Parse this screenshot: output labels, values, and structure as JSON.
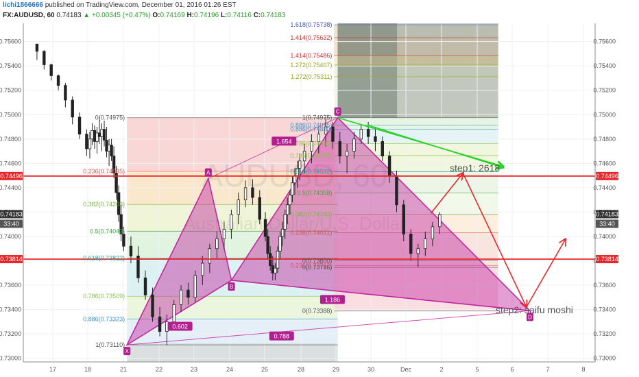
{
  "header": {
    "user": "lichi1866666",
    "published": "published on TradingView.com, December 01, 2016 01:26 EST",
    "symbol": "FX:AUDUSD, 60",
    "last": "0.74183",
    "change_arrow": "▲",
    "change": "+0.00345 (+0.47%)",
    "o_label": "O:",
    "o": "0.74169",
    "h_label": "H:",
    "h": "0.74196",
    "l_label": "L:",
    "l": "0.74116",
    "c_label": "C:",
    "c": "0.74183"
  },
  "watermark": {
    "ticker": "AUDUSD, 60",
    "name": "Australian Dollar/U.S. Dollar"
  },
  "notes": {
    "step1": "step1: 2618",
    "step2": "step2: saifu moshi"
  },
  "colors": {
    "red_line": "#e8272a",
    "up": "#29a329",
    "pattern": "#c2279f",
    "candle": "#222222"
  },
  "chart_data": {
    "type": "candlestick",
    "symbol": "FX:AUDUSD",
    "interval": "60",
    "ylim": [
      0.7297,
      0.7575
    ],
    "y_ticks": [
      "0.75600",
      "0.75400",
      "0.75200",
      "0.75000",
      "0.74800",
      "0.74600",
      "0.74400",
      "0.74200",
      "0.74000",
      "0.73800",
      "0.73600",
      "0.73400",
      "0.73200",
      "0.73000"
    ],
    "x_ticks": [
      "17",
      "18",
      "21",
      "22",
      "23",
      "24",
      "25",
      "28",
      "29",
      "30",
      "Dec",
      "2",
      "5",
      "6",
      "7",
      "8"
    ],
    "price_tags": [
      {
        "label": "0.74496",
        "value": 0.74496,
        "color": "#e8272a"
      },
      {
        "label": "0.74183",
        "value": 0.74183,
        "color": "#333333"
      },
      {
        "label": "33:40",
        "value": 0.74,
        "color": "#555555",
        "below": true
      },
      {
        "label": "0.73814",
        "value": 0.73814,
        "color": "#e8272a"
      }
    ],
    "horizontal_lines": [
      {
        "value": 0.74496,
        "color": "#e8272a"
      },
      {
        "value": 0.73814,
        "color": "#e8272a"
      }
    ],
    "harmonic_pattern": {
      "points": [
        {
          "name": "X",
          "t": 21.1,
          "price": 0.7311
        },
        {
          "name": "A",
          "t": 23.4,
          "price": 0.74475
        },
        {
          "name": "B",
          "t": 24.05,
          "price": 0.7364
        },
        {
          "name": "C",
          "t": 29.05,
          "price": 0.74975
        },
        {
          "name": "D",
          "t": 34.5,
          "price": 0.7339
        }
      ],
      "ratios": [
        {
          "label": "0.602",
          "t": 22.6,
          "price": 0.7326
        },
        {
          "label": "1.654",
          "t": 26.6,
          "price": 0.7478
        },
        {
          "label": "1.186",
          "t": 28.9,
          "price": 0.7348
        },
        {
          "label": "0.788",
          "t": 26.4,
          "price": 0.7318
        }
      ]
    },
    "fib_retracements": [
      {
        "text": "0(0.74975)",
        "value": 0.74975,
        "color": "#555555",
        "t": 21.1
      },
      {
        "text": "0.236(0.74535)",
        "value": 0.74535,
        "color": "#d9534f",
        "t": 21.1
      },
      {
        "text": "0.382(0.74263)",
        "value": 0.74263,
        "color": "#7cb342",
        "t": 21.1
      },
      {
        "text": "0.5(0.74043)",
        "value": 0.74043,
        "color": "#43a047",
        "t": 21.1
      },
      {
        "text": "0.618(0.73822)",
        "value": 0.73822,
        "color": "#26a69a",
        "t": 21.1
      },
      {
        "text": "0.786(0.73509)",
        "value": 0.73509,
        "color": "#8bc34a",
        "t": 21.1
      },
      {
        "text": "0.886(0.73323)",
        "value": 0.73323,
        "color": "#3f8fc6",
        "t": 21.1
      },
      {
        "text": "1(0.73110)",
        "value": 0.7311,
        "color": "#555555",
        "t": 21.1
      },
      {
        "text": "1.618(0.75738)",
        "value": 0.75738,
        "color": "#3f51b5",
        "t": 28.95
      },
      {
        "text": "1.414(0.75632)",
        "value": 0.75632,
        "color": "#d32f2f",
        "t": 28.95
      },
      {
        "text": "1.414(0.75486)",
        "value": 0.75486,
        "color": "#d32f2f",
        "t": 28.95
      },
      {
        "text": "1.272(0.75407)",
        "value": 0.75407,
        "color": "#9aa61c",
        "t": 28.95
      },
      {
        "text": "1.272(0.75311)",
        "value": 0.75311,
        "color": "#9aa61c",
        "t": 28.95
      },
      {
        "text": "1(0.74975)",
        "value": 0.74975,
        "color": "#555555",
        "t": 28.95
      },
      {
        "text": "0.886(0.74915)",
        "value": 0.74915,
        "color": "#3f8fc6",
        "t": 28.95
      },
      {
        "text": "0.886(0.74880)",
        "value": 0.7488,
        "color": "#3f8fc6",
        "t": 28.95
      },
      {
        "text": "0.786(0.74763)",
        "value": 0.74763,
        "color": "#8bc34a",
        "t": 28.95
      },
      {
        "text": "0.786(0.74665)",
        "value": 0.74665,
        "color": "#8bc34a",
        "t": 28.95
      },
      {
        "text": "0.618(0.74532)",
        "value": 0.74532,
        "color": "#26a69a",
        "t": 28.95
      },
      {
        "text": "0.5(0.74358)",
        "value": 0.74358,
        "color": "#43a047",
        "t": 28.95
      },
      {
        "text": "0.382(0.74183)",
        "value": 0.74183,
        "color": "#7cb342",
        "t": 28.95
      },
      {
        "text": "0.236(0.74031)",
        "value": 0.74031,
        "color": "#d9534f",
        "t": 28.95
      },
      {
        "text": "0(0.73800)",
        "value": 0.738,
        "color": "#555555",
        "t": 28.95
      },
      {
        "text": "0.236(0.73762)",
        "value": 0.73762,
        "color": "#d9534f",
        "t": 28.95
      },
      {
        "text": "0(0.73746)",
        "value": 0.73746,
        "color": "#555555",
        "t": 28.95
      },
      {
        "text": "0(0.73388)",
        "value": 0.73388,
        "color": "#555555",
        "t": 28.95
      }
    ],
    "trend_arrows": [
      {
        "t1": 29.05,
        "p1": 0.74975,
        "t2": 33.75,
        "p2": 0.74575,
        "color": "#27d227"
      },
      {
        "t1": 29.9,
        "p1": 0.74915,
        "t2": 33.75,
        "p2": 0.74565,
        "color": "#27d227"
      },
      {
        "t1": 31.7,
        "p1": 0.7419,
        "t2": 32.6,
        "p2": 0.7452,
        "color": "#e8272a"
      },
      {
        "t1": 32.6,
        "p1": 0.7452,
        "t2": 34.4,
        "p2": 0.7342,
        "color": "#e8272a"
      },
      {
        "t1": 34.4,
        "p1": 0.7342,
        "t2": 35.5,
        "p2": 0.7398,
        "color": "#e8272a"
      }
    ],
    "candles_approx": [
      [
        0.7558,
        0.7556,
        0.7545,
        0.7552
      ],
      [
        0.7552,
        0.7553,
        0.7537,
        0.7541
      ],
      [
        0.7541,
        0.7542,
        0.7528,
        0.7532
      ],
      [
        0.7532,
        0.7533,
        0.752,
        0.7524
      ],
      [
        0.7524,
        0.7526,
        0.7506,
        0.7512
      ],
      [
        0.7512,
        0.7515,
        0.7492,
        0.7498
      ],
      [
        0.7498,
        0.7502,
        0.748,
        0.7484
      ],
      [
        0.7484,
        0.7488,
        0.7466,
        0.7472
      ],
      [
        0.7472,
        0.7486,
        0.7464,
        0.748
      ],
      [
        0.748,
        0.7493,
        0.7475,
        0.7487
      ],
      [
        0.7487,
        0.7491,
        0.7472,
        0.7478
      ],
      [
        0.7478,
        0.749,
        0.7468,
        0.7485
      ],
      [
        0.7485,
        0.7498,
        0.7476,
        0.7482
      ],
      [
        0.7482,
        0.7493,
        0.747,
        0.7488
      ],
      [
        0.7488,
        0.7495,
        0.7474,
        0.7479
      ],
      [
        0.7479,
        0.749,
        0.7465,
        0.747
      ],
      [
        0.747,
        0.748,
        0.7458,
        0.7475
      ],
      [
        0.7475,
        0.748,
        0.7462,
        0.7466
      ],
      [
        0.7466,
        0.7474,
        0.7448,
        0.7452
      ],
      [
        0.7452,
        0.7458,
        0.743,
        0.7436
      ],
      [
        0.7436,
        0.7442,
        0.7412,
        0.7418
      ],
      [
        0.7418,
        0.7426,
        0.7396,
        0.7402
      ],
      [
        0.7402,
        0.7408,
        0.7388,
        0.7392
      ],
      [
        0.7392,
        0.74,
        0.7378,
        0.7384
      ],
      [
        0.7384,
        0.7392,
        0.7362,
        0.7366
      ],
      [
        0.7366,
        0.7372,
        0.7348,
        0.7352
      ],
      [
        0.7352,
        0.7358,
        0.733,
        0.7334
      ],
      [
        0.7334,
        0.7342,
        0.7318,
        0.7322
      ],
      [
        0.7322,
        0.7336,
        0.7311,
        0.733
      ],
      [
        0.733,
        0.7348,
        0.7324,
        0.7344
      ],
      [
        0.7344,
        0.736,
        0.7338,
        0.7356
      ],
      [
        0.7356,
        0.7362,
        0.7344,
        0.735
      ],
      [
        0.735,
        0.7372,
        0.7346,
        0.7368
      ],
      [
        0.7368,
        0.7384,
        0.736,
        0.7378
      ],
      [
        0.7378,
        0.7394,
        0.737,
        0.739
      ],
      [
        0.739,
        0.7404,
        0.7382,
        0.7398
      ],
      [
        0.7398,
        0.7412,
        0.739,
        0.7406
      ],
      [
        0.7406,
        0.7422,
        0.7398,
        0.7418
      ],
      [
        0.7418,
        0.7436,
        0.741,
        0.743
      ],
      [
        0.743,
        0.7446,
        0.7424,
        0.744
      ],
      [
        0.744,
        0.7447,
        0.7426,
        0.7432
      ],
      [
        0.7432,
        0.7438,
        0.741,
        0.7414
      ],
      [
        0.7414,
        0.742,
        0.7396,
        0.74
      ],
      [
        0.74,
        0.7406,
        0.7382,
        0.7386
      ],
      [
        0.7386,
        0.7392,
        0.7372,
        0.7376
      ],
      [
        0.7376,
        0.7384,
        0.7364,
        0.737
      ],
      [
        0.737,
        0.7378,
        0.7364,
        0.7374
      ],
      [
        0.7374,
        0.7392,
        0.737,
        0.7388
      ],
      [
        0.7388,
        0.7404,
        0.7382,
        0.74
      ],
      [
        0.74,
        0.7412,
        0.7392,
        0.7406
      ],
      [
        0.7406,
        0.7422,
        0.7398,
        0.7418
      ],
      [
        0.7418,
        0.7432,
        0.741,
        0.7426
      ],
      [
        0.7426,
        0.7438,
        0.7418,
        0.7434
      ],
      [
        0.7434,
        0.745,
        0.7428,
        0.7444
      ],
      [
        0.7444,
        0.7456,
        0.7434,
        0.745
      ],
      [
        0.745,
        0.7462,
        0.744,
        0.7456
      ],
      [
        0.7456,
        0.7468,
        0.7446,
        0.7462
      ],
      [
        0.7462,
        0.7476,
        0.7452,
        0.747
      ],
      [
        0.747,
        0.7484,
        0.746,
        0.7478
      ],
      [
        0.7478,
        0.749,
        0.7468,
        0.7484
      ],
      [
        0.7484,
        0.7497,
        0.7474,
        0.749
      ],
      [
        0.749,
        0.7494,
        0.7472,
        0.7478
      ],
      [
        0.7478,
        0.7486,
        0.746,
        0.7466
      ],
      [
        0.7466,
        0.7476,
        0.7452,
        0.747
      ],
      [
        0.747,
        0.7486,
        0.7464,
        0.748
      ],
      [
        0.748,
        0.7492,
        0.7476,
        0.7488
      ],
      [
        0.7488,
        0.7494,
        0.7476,
        0.7482
      ],
      [
        0.7482,
        0.749,
        0.747,
        0.7478
      ],
      [
        0.7478,
        0.7482,
        0.7462,
        0.7466
      ],
      [
        0.7466,
        0.747,
        0.7444,
        0.745
      ],
      [
        0.745,
        0.7454,
        0.742,
        0.7426
      ],
      [
        0.7426,
        0.743,
        0.7396,
        0.7402
      ],
      [
        0.7402,
        0.7406,
        0.738,
        0.7386
      ],
      [
        0.7386,
        0.7394,
        0.7375,
        0.739
      ],
      [
        0.739,
        0.7404,
        0.7384,
        0.7398
      ],
      [
        0.7398,
        0.7412,
        0.7392,
        0.7408
      ],
      [
        0.7408,
        0.742,
        0.7402,
        0.7418
      ]
    ]
  }
}
